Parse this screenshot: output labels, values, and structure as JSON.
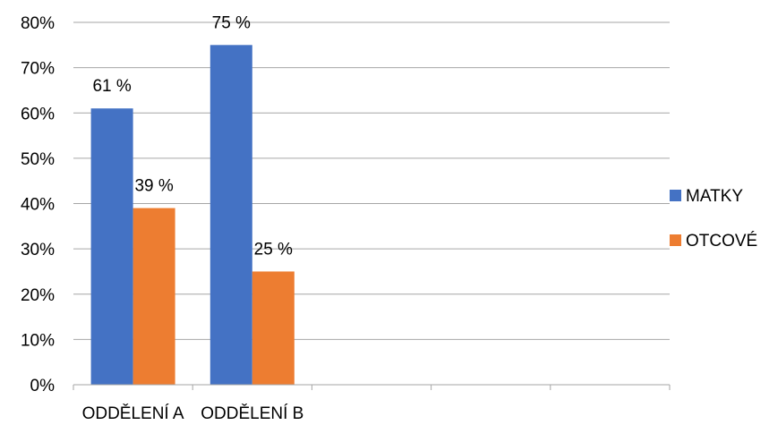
{
  "chart_data": {
    "type": "bar",
    "categories": [
      "ODDĚLENÍ A",
      "ODDĚLENÍ B",
      "",
      "",
      ""
    ],
    "series": [
      {
        "name": "MATKY",
        "values": [
          61,
          75,
          null,
          null,
          null
        ],
        "labels": [
          "61 %",
          "75 %",
          "",
          "",
          ""
        ],
        "color": "#4472C4"
      },
      {
        "name": "OTCOVÉ",
        "values": [
          39,
          25,
          null,
          null,
          null
        ],
        "labels": [
          "39 %",
          "25 %",
          "",
          "",
          ""
        ],
        "color": "#ED7D31"
      }
    ],
    "ylim": [
      0,
      80
    ],
    "yticks": [
      "0%",
      "10%",
      "20%",
      "30%",
      "40%",
      "50%",
      "60%",
      "70%",
      "80%"
    ],
    "grid": true,
    "legend": "right",
    "gridColor": "#A6A6A6"
  }
}
